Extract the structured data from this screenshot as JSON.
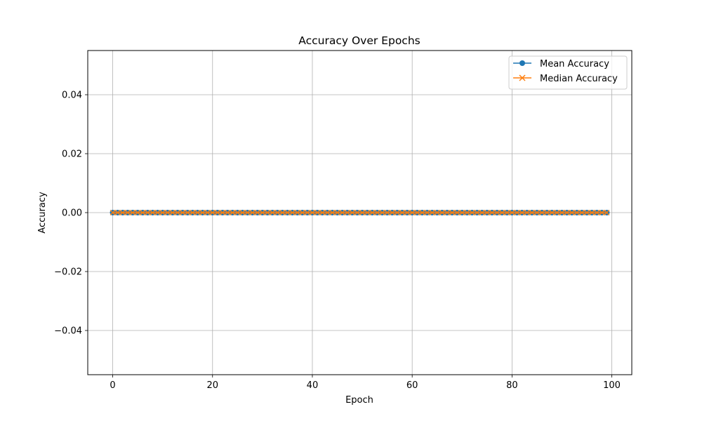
{
  "chart_data": {
    "type": "line",
    "title": "Accuracy Over Epochs",
    "xlabel": "Epoch",
    "ylabel": "Accuracy",
    "xlim": [
      -5,
      104
    ],
    "ylim": [
      -0.055,
      0.055
    ],
    "x_ticks": [
      0,
      20,
      40,
      60,
      80,
      100
    ],
    "x_tick_labels": [
      "0",
      "20",
      "40",
      "60",
      "80",
      "100"
    ],
    "y_ticks": [
      -0.04,
      -0.02,
      0.0,
      0.02,
      0.04
    ],
    "y_tick_labels": [
      "−0.04",
      "−0.02",
      "0.00",
      "0.02",
      "0.04"
    ],
    "grid": true,
    "legend_position": "top-right",
    "x": [
      0,
      1,
      2,
      3,
      4,
      5,
      6,
      7,
      8,
      9,
      10,
      11,
      12,
      13,
      14,
      15,
      16,
      17,
      18,
      19,
      20,
      21,
      22,
      23,
      24,
      25,
      26,
      27,
      28,
      29,
      30,
      31,
      32,
      33,
      34,
      35,
      36,
      37,
      38,
      39,
      40,
      41,
      42,
      43,
      44,
      45,
      46,
      47,
      48,
      49,
      50,
      51,
      52,
      53,
      54,
      55,
      56,
      57,
      58,
      59,
      60,
      61,
      62,
      63,
      64,
      65,
      66,
      67,
      68,
      69,
      70,
      71,
      72,
      73,
      74,
      75,
      76,
      77,
      78,
      79,
      80,
      81,
      82,
      83,
      84,
      85,
      86,
      87,
      88,
      89,
      90,
      91,
      92,
      93,
      94,
      95,
      96,
      97,
      98,
      99
    ],
    "series": [
      {
        "name": "Mean Accuracy",
        "color": "#1f77b4",
        "marker": "circle",
        "values": [
          0,
          0,
          0,
          0,
          0,
          0,
          0,
          0,
          0,
          0,
          0,
          0,
          0,
          0,
          0,
          0,
          0,
          0,
          0,
          0,
          0,
          0,
          0,
          0,
          0,
          0,
          0,
          0,
          0,
          0,
          0,
          0,
          0,
          0,
          0,
          0,
          0,
          0,
          0,
          0,
          0,
          0,
          0,
          0,
          0,
          0,
          0,
          0,
          0,
          0,
          0,
          0,
          0,
          0,
          0,
          0,
          0,
          0,
          0,
          0,
          0,
          0,
          0,
          0,
          0,
          0,
          0,
          0,
          0,
          0,
          0,
          0,
          0,
          0,
          0,
          0,
          0,
          0,
          0,
          0,
          0,
          0,
          0,
          0,
          0,
          0,
          0,
          0,
          0,
          0,
          0,
          0,
          0,
          0,
          0,
          0,
          0,
          0,
          0,
          0
        ]
      },
      {
        "name": "Median Accuracy",
        "color": "#ff7f0e",
        "marker": "x",
        "values": [
          0,
          0,
          0,
          0,
          0,
          0,
          0,
          0,
          0,
          0,
          0,
          0,
          0,
          0,
          0,
          0,
          0,
          0,
          0,
          0,
          0,
          0,
          0,
          0,
          0,
          0,
          0,
          0,
          0,
          0,
          0,
          0,
          0,
          0,
          0,
          0,
          0,
          0,
          0,
          0,
          0,
          0,
          0,
          0,
          0,
          0,
          0,
          0,
          0,
          0,
          0,
          0,
          0,
          0,
          0,
          0,
          0,
          0,
          0,
          0,
          0,
          0,
          0,
          0,
          0,
          0,
          0,
          0,
          0,
          0,
          0,
          0,
          0,
          0,
          0,
          0,
          0,
          0,
          0,
          0,
          0,
          0,
          0,
          0,
          0,
          0,
          0,
          0,
          0,
          0,
          0,
          0,
          0,
          0,
          0,
          0,
          0,
          0,
          0,
          0
        ]
      }
    ]
  }
}
